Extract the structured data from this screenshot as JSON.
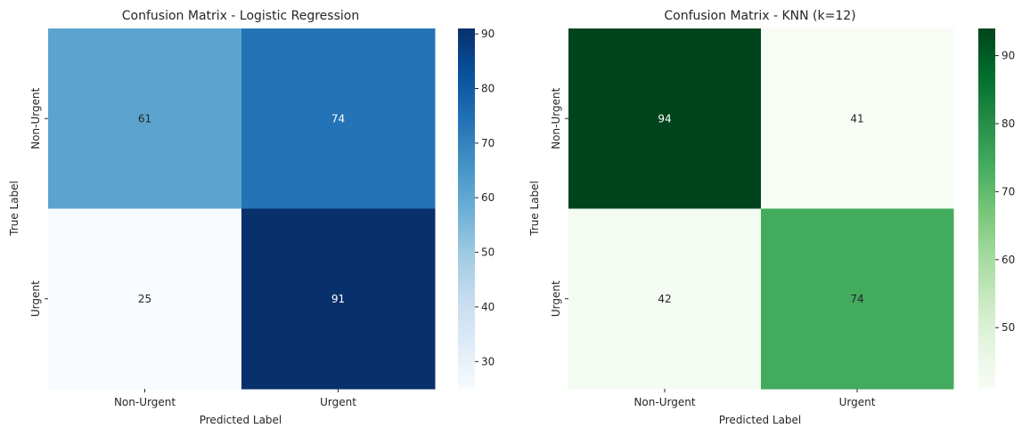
{
  "chart_data": [
    {
      "type": "heatmap",
      "title": "Confusion Matrix - Logistic Regression",
      "xlabel": "Predicted Label",
      "ylabel": "True Label",
      "x_categories": [
        "Non-Urgent",
        "Urgent"
      ],
      "y_categories": [
        "Non-Urgent",
        "Urgent"
      ],
      "values": [
        [
          61,
          74
        ],
        [
          25,
          91
        ]
      ],
      "colormap": "Blues",
      "colorbar": {
        "range": [
          25,
          91
        ],
        "ticks": [
          30,
          40,
          50,
          60,
          70,
          80,
          90
        ]
      },
      "grid": false
    },
    {
      "type": "heatmap",
      "title": "Confusion Matrix - KNN (k=12)",
      "xlabel": "Predicted Label",
      "ylabel": "True Label",
      "x_categories": [
        "Non-Urgent",
        "Urgent"
      ],
      "y_categories": [
        "Non-Urgent",
        "Urgent"
      ],
      "values": [
        [
          94,
          41
        ],
        [
          42,
          74
        ]
      ],
      "colormap": "Greens",
      "colorbar": {
        "range": [
          41,
          94
        ],
        "ticks": [
          50,
          60,
          70,
          80,
          90
        ]
      },
      "grid": false
    }
  ]
}
